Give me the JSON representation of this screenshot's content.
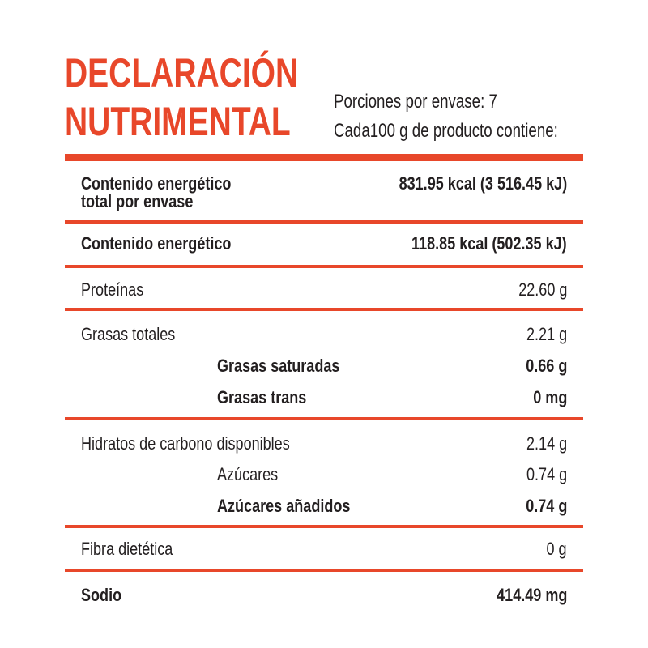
{
  "header": {
    "title_line1": "DECLARACIÓN",
    "title_line2": "NUTRIMENTAL",
    "servings": "Porciones por envase: 7",
    "per_unit": "Cada100 g de producto contiene:"
  },
  "rows": {
    "energy_total_label_1": "Contenido energético",
    "energy_total_label_2": "total por envase",
    "energy_total_value": "831.95 kcal (3 516.45 kJ)",
    "energy_label": "Contenido energético",
    "energy_value": "118.85 kcal (502.35 kJ)",
    "protein_label": "Proteínas",
    "protein_value": "22.60 g",
    "fat_label": "Grasas totales",
    "fat_value": "2.21 g",
    "sat_fat_label": "Grasas saturadas",
    "sat_fat_value": "0.66 g",
    "trans_fat_label": "Grasas trans",
    "trans_fat_value": "0 mg",
    "carbs_label": "Hidratos de carbono disponibles",
    "carbs_value": "2.14 g",
    "sugars_label": "Azúcares",
    "sugars_value": "0.74 g",
    "added_sugars_label": "Azúcares añadidos",
    "added_sugars_value": "0.74 g",
    "fiber_label": "Fibra dietética",
    "fiber_value": "0 g",
    "sodium_label": "Sodio",
    "sodium_value": "414.49 mg"
  },
  "colors": {
    "accent": "#e8472a",
    "text": "#231f20",
    "background": "#ffffff"
  }
}
